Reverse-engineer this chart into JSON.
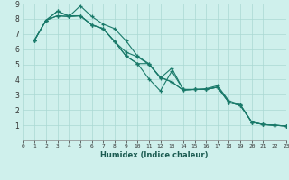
{
  "title": "",
  "xlabel": "Humidex (Indice chaleur)",
  "background_color": "#cff0ec",
  "grid_color": "#aad8d3",
  "line_color": "#1a7a6a",
  "xlim": [
    0,
    23
  ],
  "ylim": [
    0,
    9
  ],
  "xticks": [
    0,
    1,
    2,
    3,
    4,
    5,
    6,
    7,
    8,
    9,
    10,
    11,
    12,
    13,
    14,
    15,
    16,
    17,
    18,
    19,
    20,
    21,
    22,
    23
  ],
  "yticks": [
    1,
    2,
    3,
    4,
    5,
    6,
    7,
    8,
    9
  ],
  "series": [
    {
      "x": [
        1,
        2,
        3,
        4,
        5,
        6,
        7,
        8,
        9,
        10,
        11,
        12,
        13,
        14,
        15,
        16,
        17,
        18,
        19,
        20,
        21,
        22,
        23
      ],
      "y": [
        6.6,
        7.9,
        8.5,
        8.2,
        8.2,
        7.6,
        7.35,
        6.5,
        5.8,
        5.5,
        5.0,
        4.15,
        3.85,
        3.3,
        3.35,
        3.35,
        3.5,
        2.5,
        2.3,
        1.2,
        1.05,
        1.0,
        0.95
      ]
    },
    {
      "x": [
        1,
        2,
        3,
        4,
        5,
        6,
        7,
        8,
        9,
        10,
        11,
        12,
        13,
        14,
        15,
        16,
        17,
        18,
        19,
        20,
        21,
        22,
        23
      ],
      "y": [
        6.6,
        7.9,
        8.2,
        8.15,
        8.85,
        8.15,
        7.65,
        7.35,
        6.55,
        5.55,
        5.05,
        4.1,
        4.75,
        3.35,
        3.35,
        3.4,
        3.6,
        2.6,
        2.35,
        1.2,
        1.05,
        1.0,
        0.95
      ]
    },
    {
      "x": [
        1,
        2,
        3,
        4,
        5,
        6,
        7,
        8,
        9,
        10,
        11,
        12,
        13,
        14,
        15,
        16,
        17,
        18,
        19,
        20,
        21,
        22,
        23
      ],
      "y": [
        6.6,
        7.9,
        8.2,
        8.15,
        8.2,
        7.6,
        7.35,
        6.5,
        5.55,
        5.05,
        4.05,
        3.25,
        4.55,
        3.35,
        3.35,
        3.35,
        3.5,
        2.5,
        2.3,
        1.2,
        1.05,
        1.0,
        0.95
      ]
    },
    {
      "x": [
        1,
        2,
        3,
        4,
        5,
        6,
        7,
        8,
        9,
        10,
        11,
        12,
        13,
        14,
        15,
        16,
        17,
        18,
        19,
        20,
        21,
        22,
        23
      ],
      "y": [
        6.6,
        7.9,
        8.5,
        8.15,
        8.2,
        7.6,
        7.35,
        6.5,
        5.55,
        5.05,
        5.05,
        4.15,
        3.85,
        3.3,
        3.35,
        3.35,
        3.5,
        2.5,
        2.3,
        1.2,
        1.05,
        1.0,
        0.95
      ]
    }
  ]
}
